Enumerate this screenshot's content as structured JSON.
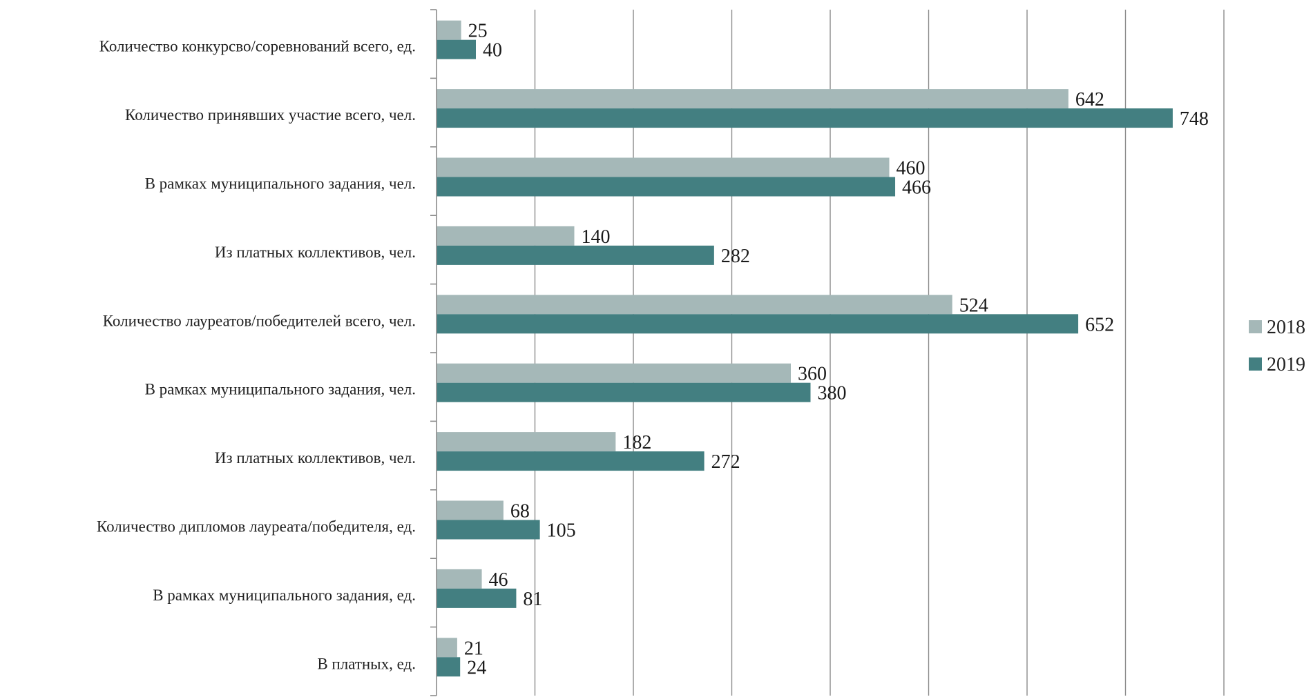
{
  "chart_data": {
    "type": "bar",
    "orientation": "horizontal",
    "categories": [
      "Количество  конкурсво/соревнований  всего, ед.",
      "Количество  принявших участие всего, чел.",
      "В рамках  муниципального  задания,  чел.",
      "Из платных  коллективов,  чел.",
      "Количество  лауреатов/победителей  всего, чел.",
      "В рамках  муниципального  задания,  чел.",
      "Из платных  коллективов,  чел.",
      "Количество  дипломов  лауреата/победителя,  ед.",
      "В рамках  муниципального  задания,  ед.",
      "В платных,  ед."
    ],
    "series": [
      {
        "name": "2018",
        "values": [
          25,
          642,
          460,
          140,
          524,
          360,
          182,
          68,
          46,
          21
        ]
      },
      {
        "name": "2019",
        "values": [
          40,
          748,
          466,
          282,
          652,
          380,
          272,
          105,
          81,
          24
        ]
      }
    ],
    "xlim": [
      0,
      900
    ],
    "grid": true,
    "legend_position": "right"
  },
  "colors": {
    "series_2018": "#a5b8b8",
    "series_2019": "#437f81"
  }
}
